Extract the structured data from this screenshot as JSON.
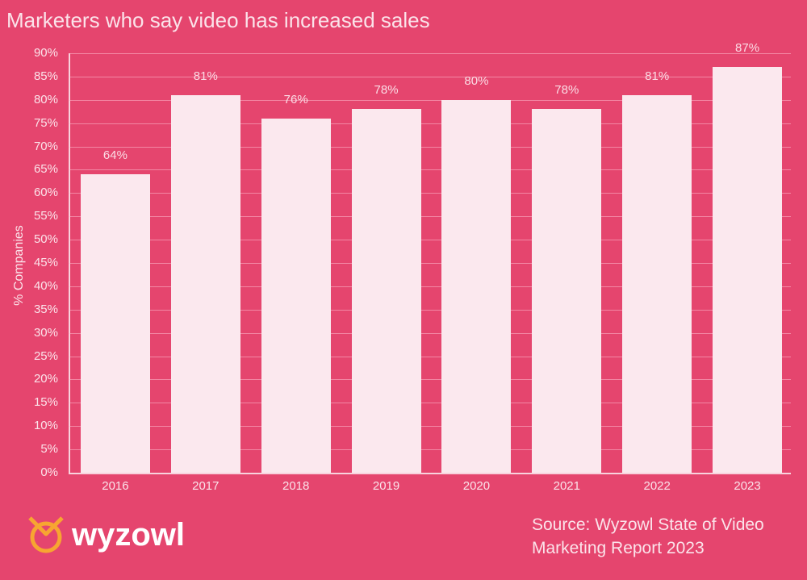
{
  "chart_data": {
    "type": "bar",
    "title": "Marketers who say video has increased sales",
    "xlabel": "",
    "ylabel": "% Companies",
    "categories": [
      "2016",
      "2017",
      "2018",
      "2019",
      "2020",
      "2021",
      "2022",
      "2023"
    ],
    "values": [
      64,
      81,
      76,
      78,
      80,
      78,
      81,
      87
    ],
    "value_labels": [
      "64%",
      "81%",
      "76%",
      "78%",
      "80%",
      "78%",
      "81%",
      "87%"
    ],
    "ylim": [
      0,
      90
    ],
    "yticks": [
      "0%",
      "5%",
      "10%",
      "15%",
      "20%",
      "25%",
      "30%",
      "35%",
      "40%",
      "45%",
      "50%",
      "55%",
      "60%",
      "65%",
      "70%",
      "75%",
      "80%",
      "85%",
      "90%"
    ],
    "grid": true,
    "legend": null,
    "colors": {
      "background": "#e5456e",
      "bar": "#fbe8ee"
    }
  },
  "branding": {
    "logo_text": "wyzowl"
  },
  "source": {
    "line1": "Source: Wyzowl State of Video",
    "line2": "Marketing Report 2023"
  }
}
